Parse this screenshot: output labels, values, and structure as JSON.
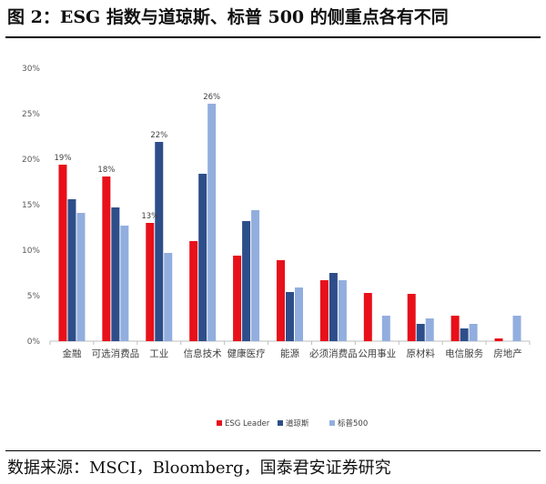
{
  "figure": {
    "title": "图 2：ESG 指数与道琼斯、标普 500 的侧重点各有不同",
    "source": "数据来源：MSCI，Bloomberg，国泰君安证券研究"
  },
  "chart_data": {
    "type": "bar",
    "categories": [
      "金融",
      "可选消费品",
      "工业",
      "信息技术",
      "健康医疗",
      "能源",
      "必须消费品",
      "公用事业",
      "原材料",
      "电信服务",
      "房地产"
    ],
    "series": [
      {
        "name": "ESG Leader",
        "color": "#e8101a",
        "values": [
          19.4,
          18.1,
          13.0,
          11.0,
          9.4,
          8.9,
          6.7,
          5.3,
          5.2,
          2.8,
          0.3
        ]
      },
      {
        "name": "道琼斯",
        "color": "#2d4e8a",
        "values": [
          15.6,
          14.7,
          21.9,
          18.4,
          13.2,
          5.4,
          7.5,
          0,
          1.9,
          1.4,
          0
        ]
      },
      {
        "name": "标普500",
        "color": "#92aede",
        "values": [
          14.1,
          12.7,
          9.7,
          26.1,
          14.4,
          5.9,
          6.7,
          2.8,
          2.5,
          1.9,
          2.8
        ]
      }
    ],
    "data_labels": [
      {
        "series": 0,
        "index": 0,
        "text": "19%"
      },
      {
        "series": 0,
        "index": 1,
        "text": "18%"
      },
      {
        "series": 0,
        "index": 2,
        "text": "13%"
      },
      {
        "series": 1,
        "index": 2,
        "text": "22%"
      },
      {
        "series": 2,
        "index": 3,
        "text": "26%"
      }
    ],
    "y_ticks": [
      0,
      5,
      10,
      15,
      20,
      25,
      30
    ],
    "y_tick_suffix": "%",
    "ylim": [
      0,
      30
    ],
    "grid": false,
    "legend_position": "bottom-center"
  }
}
